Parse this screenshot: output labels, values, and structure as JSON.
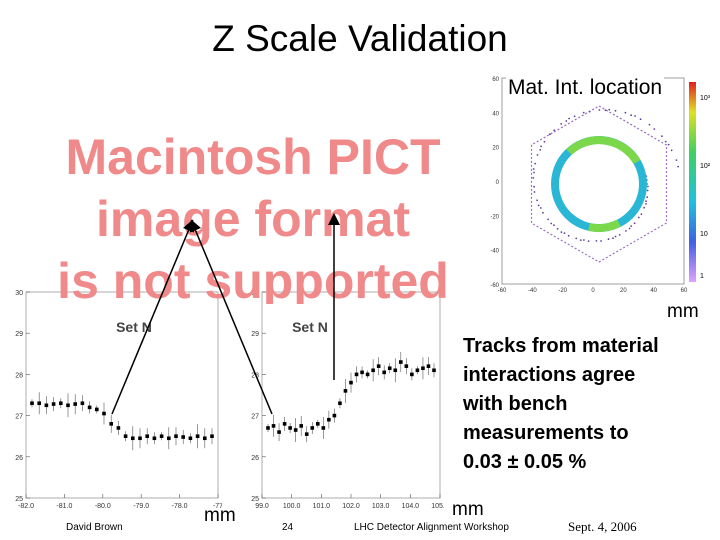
{
  "slide": {
    "title": "Z Scale Validation",
    "pict_notice": [
      "Macintosh PICT",
      "image format",
      "is not supported"
    ],
    "mat_int_label": "Mat. Int. location",
    "mm_label": "mm",
    "tracks_text": [
      "Tracks from material",
      "interactions agree",
      "with bench",
      "measurements to",
      "0.03 ± 0.05 %"
    ],
    "footer": {
      "author": "David Brown",
      "page": "24",
      "workshop": "LHC Detector Alignment Workshop",
      "date": "Sept. 4, 2006"
    }
  },
  "colors": {
    "pict_text": "#f08a8a",
    "ring": "#2ab7d6",
    "ring_highlight": "#7ad84a"
  },
  "chart_data": [
    {
      "type": "scatter",
      "title": "Set N",
      "xlabel": "mm",
      "ylabel": "",
      "ylim": [
        25,
        30
      ],
      "yticks": [
        "30",
        "29",
        "28",
        "27",
        "26",
        "25"
      ],
      "xticks": [
        "-82.0",
        "-81.0",
        "-80.0",
        "-79.0",
        "-78.0",
        "-77"
      ],
      "values": [
        27.3,
        27.3,
        27.25,
        27.28,
        27.3,
        27.25,
        27.28,
        27.3,
        27.2,
        27.15,
        27.05,
        26.8,
        26.7,
        26.5,
        26.45,
        26.45,
        26.5,
        26.45,
        26.5,
        26.45,
        26.5,
        26.48,
        26.45,
        26.5,
        26.45,
        26.5
      ]
    },
    {
      "type": "scatter",
      "title": "Set N",
      "xlabel": "mm",
      "ylabel": "",
      "ylim": [
        25,
        30
      ],
      "yticks": [
        "30",
        "29",
        "28",
        "27",
        "26",
        "25"
      ],
      "xticks": [
        "99.0",
        "100.0",
        "101.0",
        "102.0",
        "103.0",
        "104.0",
        "105.0"
      ],
      "values": [
        26.7,
        26.75,
        26.6,
        26.8,
        26.7,
        26.65,
        26.75,
        26.55,
        26.7,
        26.8,
        26.7,
        26.9,
        27.0,
        27.3,
        27.6,
        27.8,
        28.0,
        28.05,
        28.0,
        28.1,
        28.2,
        28.05,
        28.15,
        28.1,
        28.3,
        28.2,
        28.0,
        28.1,
        28.15,
        28.2,
        28.1
      ]
    },
    {
      "type": "heatmap",
      "title": "Mat. Int. location",
      "xlabel": "mm",
      "ylabel": "",
      "xticks": [
        "-60",
        "-40",
        "-20",
        "0",
        "20",
        "40",
        "60"
      ],
      "yticks": [
        "60",
        "40",
        "20",
        "0",
        "-20",
        "-40",
        "-60"
      ],
      "colorbar_ticks": [
        "10³",
        "10²",
        "10",
        "1"
      ]
    }
  ]
}
